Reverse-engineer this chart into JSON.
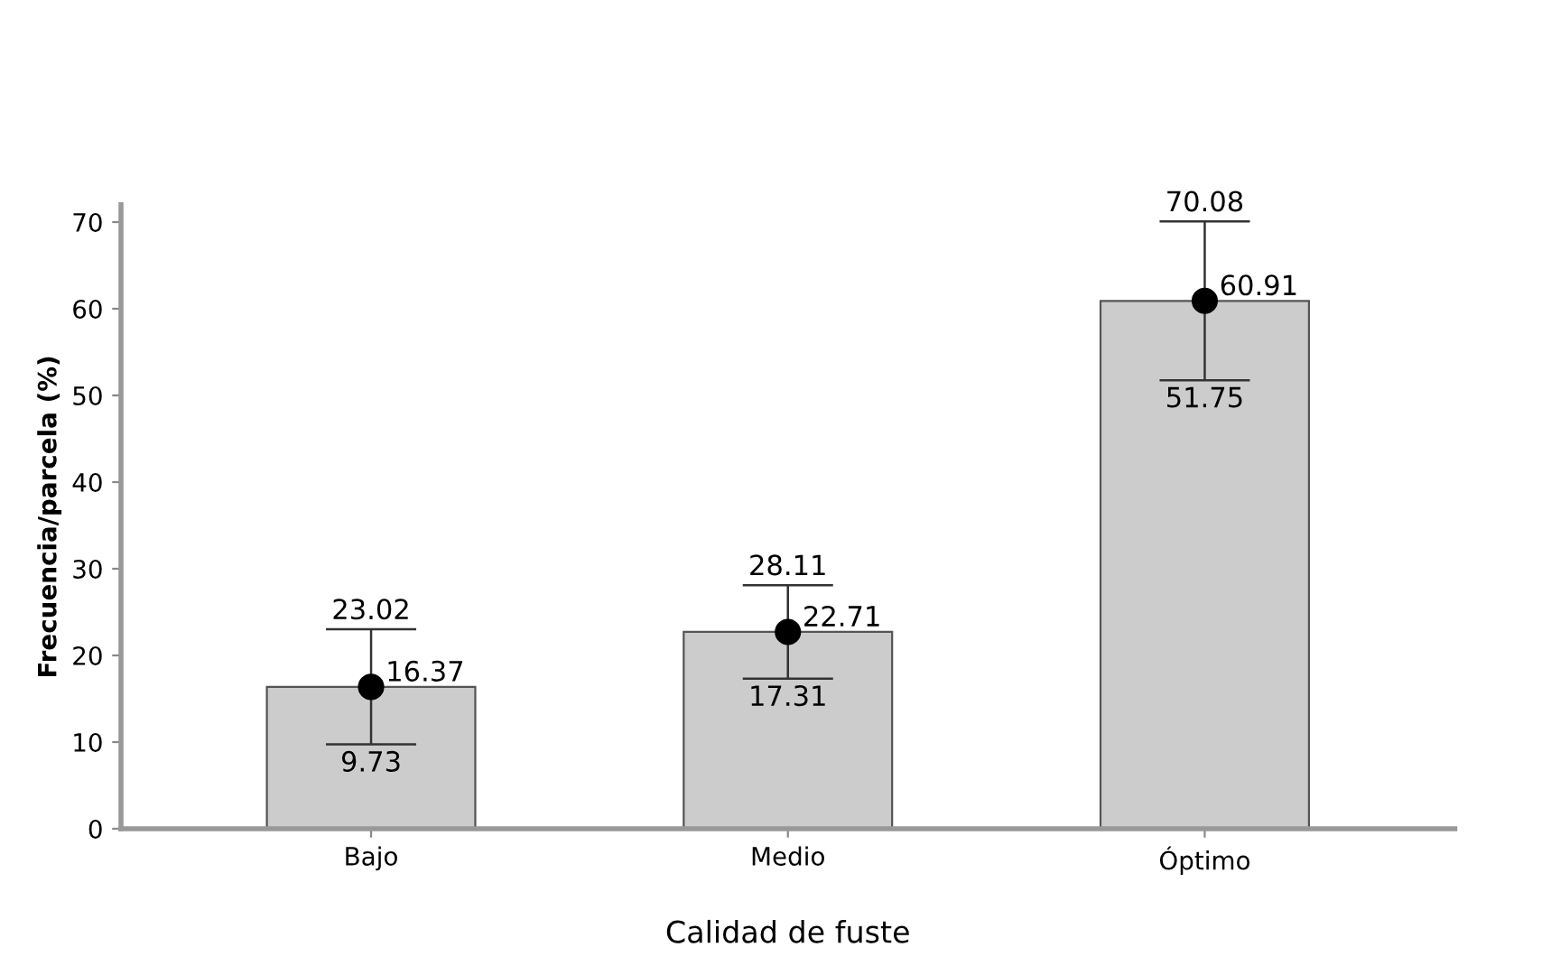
{
  "chart_data": {
    "type": "bar",
    "xlabel": "Calidad de fuste",
    "ylabel": "Frecuencia/parcela (%)",
    "categories": [
      "Bajo",
      "Medio",
      "Óptimo"
    ],
    "series": [
      {
        "color": "#cccccc",
        "values": [
          16.37,
          22.71,
          60.91
        ],
        "errors": [
          [
            9.73,
            23.02
          ],
          [
            17.31,
            28.11
          ],
          [
            51.75,
            70.08
          ]
        ]
      },
      {
        "type": "scatter",
        "color": "#000000",
        "x": [
          "Bajo",
          "Medio",
          "Óptimo"
        ],
        "values": [
          16.37,
          22.71,
          60.91
        ],
        "value_labels": [
          "16.37",
          "22.71",
          "60.91"
        ]
      }
    ],
    "annotations": [
      {
        "text": "23.02",
        "x": "Bajo",
        "y": 23.02
      },
      {
        "text": "9.73",
        "x": "Bajo",
        "y": 9.73
      },
      {
        "text": "28.11",
        "x": "Medio",
        "y": 28.11
      },
      {
        "text": "17.31",
        "x": "Medio",
        "y": 17.31
      },
      {
        "text": "70.08",
        "x": "Óptimo",
        "y": 70.08
      },
      {
        "text": "51.75",
        "x": "Óptimo",
        "y": 51.75
      }
    ],
    "ylim": [
      0,
      72
    ],
    "yticks": [
      0,
      10,
      20,
      30,
      40,
      50,
      60,
      70
    ],
    "grid": false,
    "legend": false,
    "marker": "circle"
  }
}
